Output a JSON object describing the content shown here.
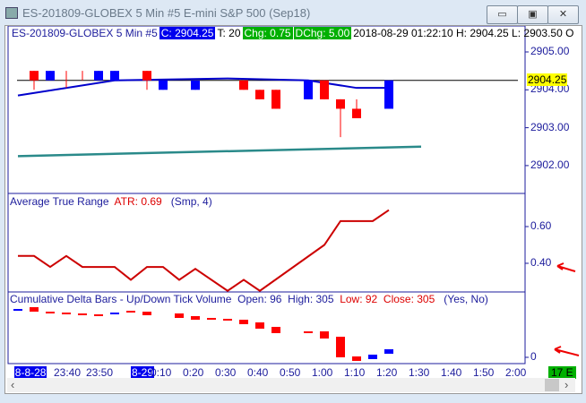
{
  "window": {
    "title": "ES-201809-GLOBEX  5 Min   #5  E-mini S&P 500 (Sep18)",
    "buttons": [
      "minimize",
      "maximize",
      "close"
    ],
    "button_glyphs": [
      "▭",
      "▣",
      "✕"
    ]
  },
  "info_bar": {
    "instrument": "ES-201809-GLOBEX  5 Min   #5",
    "close": "C: 2904.25",
    "ticks": "T: 20",
    "chg": "Chg: 0.75",
    "dchg": "DChg: 5.00",
    "rest": "2018-08-29 01:22:10 H: 2904.25 L: 2903.50 O"
  },
  "colors": {
    "up": "#0000ff",
    "down": "#ff0000",
    "axis": "#1c1c9c",
    "ma": "#0000cc",
    "slow_ma": "#2a8a8a",
    "atr": "#cc0000",
    "last_price_bg": "#ffff00",
    "green_badge": "#00b000"
  },
  "price_axis": {
    "ticks": [
      "2905.00",
      "2904.00",
      "2903.00",
      "2902.00"
    ],
    "last_price": "2904.25"
  },
  "atr_panel": {
    "name": "Average True Range",
    "value": "ATR: 0.69",
    "params": "(Smp, 4)",
    "ticks": [
      "0.60",
      "0.40"
    ]
  },
  "delta_panel": {
    "name": "Cumulative Delta Bars - Up/Down Tick Volume",
    "open": "Open: 96",
    "high": "High: 305",
    "low": "Low: 92",
    "close": "Close: 305",
    "params": "(Yes, No)",
    "ticks": [
      "0"
    ]
  },
  "time_axis": {
    "labels": [
      {
        "t": -32,
        "text": "8-8-28",
        "hl": true
      },
      {
        "t": -20,
        "text": "23:40"
      },
      {
        "t": -10,
        "text": "23:50"
      },
      {
        "t": 0,
        "text": "8-29",
        "hl": true
      },
      {
        "t": 10,
        "text": "0:10"
      },
      {
        "t": 20,
        "text": "0:20"
      },
      {
        "t": 30,
        "text": "0:30"
      },
      {
        "t": 40,
        "text": "0:40"
      },
      {
        "t": 50,
        "text": "0:50"
      },
      {
        "t": 60,
        "text": "1:00"
      },
      {
        "t": 70,
        "text": "1:10"
      },
      {
        "t": 80,
        "text": "1:20"
      },
      {
        "t": 90,
        "text": "1:30"
      },
      {
        "t": 100,
        "text": "1:40"
      },
      {
        "t": 110,
        "text": "1:50"
      },
      {
        "t": 120,
        "text": "2:00"
      }
    ],
    "badge": "17 E"
  },
  "chart_data": {
    "type": "candlestick",
    "candles": [
      {
        "t": -30,
        "o": 2904.5,
        "h": 2904.5,
        "l": 2904.0,
        "c": 2904.25,
        "col": "down"
      },
      {
        "t": -25,
        "o": 2904.25,
        "h": 2904.5,
        "l": 2904.25,
        "c": 2904.5,
        "col": "up"
      },
      {
        "t": -20,
        "o": 2904.25,
        "h": 2904.5,
        "l": 2904.05,
        "c": 2904.25,
        "col": "down"
      },
      {
        "t": -15,
        "o": 2904.25,
        "h": 2904.5,
        "l": 2904.25,
        "c": 2904.25,
        "col": "down"
      },
      {
        "t": -10,
        "o": 2904.25,
        "h": 2904.5,
        "l": 2904.25,
        "c": 2904.5,
        "col": "up"
      },
      {
        "t": -5,
        "o": 2904.25,
        "h": 2904.5,
        "l": 2904.25,
        "c": 2904.5,
        "col": "up"
      },
      {
        "t": 5,
        "o": 2904.5,
        "h": 2904.5,
        "l": 2904.0,
        "c": 2904.25,
        "col": "down"
      },
      {
        "t": 10,
        "o": 2904.0,
        "h": 2904.25,
        "l": 2904.0,
        "c": 2904.25,
        "col": "up"
      },
      {
        "t": 20,
        "o": 2904.0,
        "h": 2904.25,
        "l": 2904.0,
        "c": 2904.25,
        "col": "up"
      },
      {
        "t": 35,
        "o": 2904.25,
        "h": 2904.25,
        "l": 2904.0,
        "c": 2904.0,
        "col": "down"
      },
      {
        "t": 40,
        "o": 2904.0,
        "h": 2904.0,
        "l": 2903.75,
        "c": 2903.75,
        "col": "down"
      },
      {
        "t": 45,
        "o": 2904.0,
        "h": 2904.0,
        "l": 2903.5,
        "c": 2903.5,
        "col": "down"
      },
      {
        "t": 55,
        "o": 2903.75,
        "h": 2904.25,
        "l": 2903.75,
        "c": 2904.25,
        "col": "up"
      },
      {
        "t": 60,
        "o": 2904.25,
        "h": 2904.25,
        "l": 2903.75,
        "c": 2903.75,
        "col": "down"
      },
      {
        "t": 65,
        "o": 2903.75,
        "h": 2903.75,
        "l": 2902.75,
        "c": 2903.5,
        "col": "down"
      },
      {
        "t": 70,
        "o": 2903.5,
        "h": 2903.75,
        "l": 2903.25,
        "c": 2903.25,
        "col": "down"
      },
      {
        "t": 80,
        "o": 2903.5,
        "h": 2904.25,
        "l": 2903.5,
        "c": 2904.25,
        "col": "up"
      }
    ],
    "ma": [
      [
        -35,
        2903.85
      ],
      [
        -5,
        2904.25
      ],
      [
        30,
        2904.3
      ],
      [
        55,
        2904.25
      ],
      [
        70,
        2904.05
      ],
      [
        80,
        2904.05
      ]
    ],
    "slow_ma": [
      [
        -35,
        2902.25
      ],
      [
        90,
        2902.5
      ]
    ],
    "atr": [
      [
        -35,
        0.44
      ],
      [
        -30,
        0.44
      ],
      [
        -25,
        0.38
      ],
      [
        -20,
        0.44
      ],
      [
        -15,
        0.38
      ],
      [
        -5,
        0.38
      ],
      [
        0,
        0.31
      ],
      [
        5,
        0.38
      ],
      [
        10,
        0.38
      ],
      [
        15,
        0.31
      ],
      [
        20,
        0.37
      ],
      [
        30,
        0.25
      ],
      [
        35,
        0.31
      ],
      [
        40,
        0.25
      ],
      [
        60,
        0.5
      ],
      [
        65,
        0.63
      ],
      [
        75,
        0.63
      ],
      [
        80,
        0.69
      ]
    ],
    "delta": [
      {
        "t": -35,
        "o": 2650,
        "c": 2650,
        "col": "up"
      },
      {
        "t": -30,
        "o": 2750,
        "c": 2550,
        "col": "down"
      },
      {
        "t": -25,
        "o": 2500,
        "c": 2500,
        "col": "down"
      },
      {
        "t": -20,
        "o": 2450,
        "c": 2450,
        "col": "down"
      },
      {
        "t": -15,
        "o": 2400,
        "c": 2400,
        "col": "down"
      },
      {
        "t": -10,
        "o": 2350,
        "c": 2350,
        "col": "down"
      },
      {
        "t": -5,
        "o": 2450,
        "c": 2450,
        "col": "up"
      },
      {
        "t": 0,
        "o": 2550,
        "c": 2550,
        "col": "down"
      },
      {
        "t": 5,
        "o": 2500,
        "c": 2350,
        "col": "down"
      },
      {
        "t": 15,
        "o": 2400,
        "c": 2200,
        "col": "down"
      },
      {
        "t": 20,
        "o": 2250,
        "c": 2100,
        "col": "down"
      },
      {
        "t": 25,
        "o": 2150,
        "c": 2100,
        "col": "down"
      },
      {
        "t": 30,
        "o": 2100,
        "c": 2100,
        "col": "down"
      },
      {
        "t": 35,
        "o": 2050,
        "c": 1850,
        "col": "down"
      },
      {
        "t": 40,
        "o": 1900,
        "c": 1600,
        "col": "down"
      },
      {
        "t": 45,
        "o": 1650,
        "c": 1350,
        "col": "down"
      },
      {
        "t": 55,
        "o": 1400,
        "c": 1400,
        "col": "down"
      },
      {
        "t": 60,
        "o": 1400,
        "c": 1050,
        "col": "down"
      },
      {
        "t": 65,
        "o": 1100,
        "c": 0,
        "col": "down"
      },
      {
        "t": 70,
        "o": 0,
        "c": -200,
        "col": "down"
      },
      {
        "t": 75,
        "o": 100,
        "c": -100,
        "col": "up"
      },
      {
        "t": 80,
        "o": 400,
        "c": 200,
        "col": "up"
      }
    ]
  }
}
